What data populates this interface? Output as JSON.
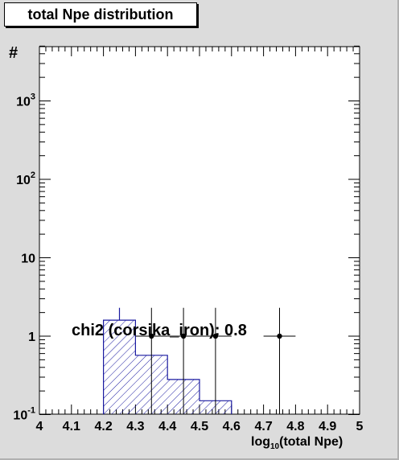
{
  "chart_data": {
    "type": "histogram",
    "title": "total Npe distribution",
    "xlabel_main": "log",
    "xlabel_sub": "10",
    "xlabel_rest": "(total Npe)",
    "ylabel": "#",
    "xlim": [
      4.0,
      5.0
    ],
    "ylim": [
      0.1,
      5000
    ],
    "ylog": true,
    "x_ticks": [
      "4",
      "4.1",
      "4.2",
      "4.3",
      "4.4",
      "4.5",
      "4.6",
      "4.7",
      "4.8",
      "4.9",
      "5"
    ],
    "y_ticks": [
      {
        "value": 0.1,
        "base": "10",
        "exp": "-1"
      },
      {
        "value": 1,
        "base": "1",
        "exp": ""
      },
      {
        "value": 10,
        "base": "10",
        "exp": ""
      },
      {
        "value": 100,
        "base": "10",
        "exp": "2"
      },
      {
        "value": 1000,
        "base": "10",
        "exp": "3"
      }
    ],
    "histogram": {
      "color": "#1a1aa0",
      "bins": [
        {
          "x0": 4.2,
          "x1": 4.3,
          "y": 1.6
        },
        {
          "x0": 4.3,
          "x1": 4.4,
          "y": 0.57
        },
        {
          "x0": 4.4,
          "x1": 4.5,
          "y": 0.28
        },
        {
          "x0": 4.5,
          "x1": 4.6,
          "y": 0.15
        }
      ],
      "error_x": 4.25,
      "error_hi": 2.3
    },
    "points": {
      "color": "#000000",
      "data": [
        {
          "x": 4.35,
          "y": 1.0,
          "xlo": 4.3,
          "xhi": 4.4,
          "ylo": 0.1,
          "yhi": 2.3
        },
        {
          "x": 4.45,
          "y": 1.0,
          "xlo": 4.4,
          "xhi": 4.5,
          "ylo": 0.1,
          "yhi": 2.3
        },
        {
          "x": 4.55,
          "y": 1.0,
          "xlo": 4.5,
          "xhi": 4.6,
          "ylo": 0.1,
          "yhi": 2.3
        },
        {
          "x": 4.75,
          "y": 1.0,
          "xlo": 4.7,
          "xhi": 4.8,
          "ylo": 0.1,
          "yhi": 2.3
        }
      ]
    },
    "annotation": "chi2 (corsika_iron): 0.8"
  }
}
